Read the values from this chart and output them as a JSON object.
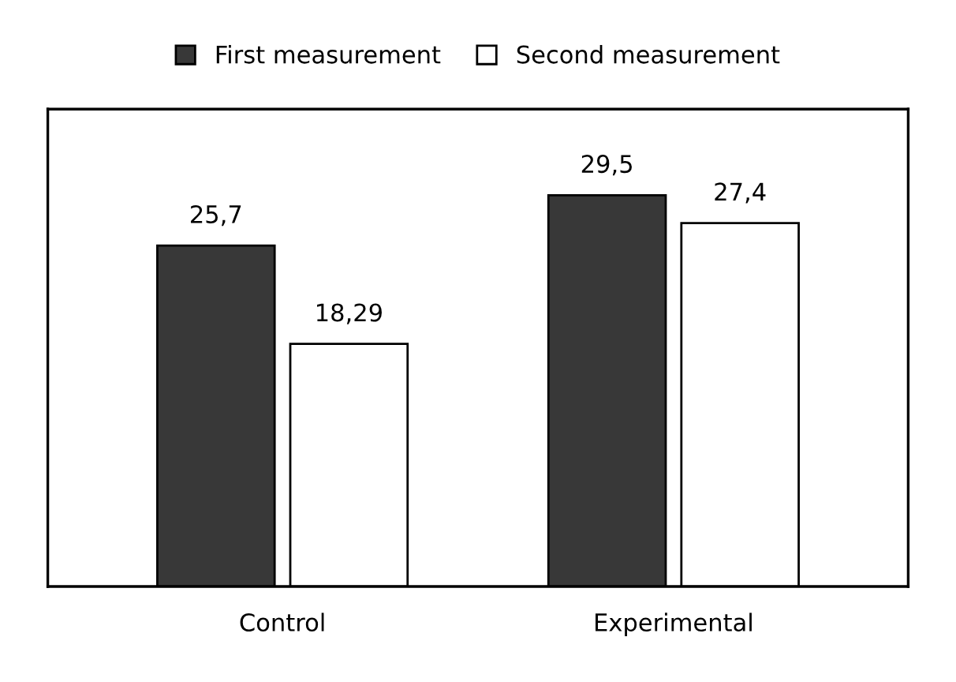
{
  "chart_data": {
    "type": "bar",
    "categories": [
      "Control",
      "Experimental"
    ],
    "series": [
      {
        "name": "First measurement",
        "color": "#383838",
        "values": [
          25.7,
          29.5
        ],
        "value_labels": [
          "25,7",
          "29,5"
        ]
      },
      {
        "name": "Second measurement",
        "color": "#ffffff",
        "values": [
          18.29,
          27.4
        ],
        "value_labels": [
          "18,29",
          "27,4"
        ]
      }
    ],
    "legend": "top",
    "grid": false,
    "tick_labels": "x"
  }
}
